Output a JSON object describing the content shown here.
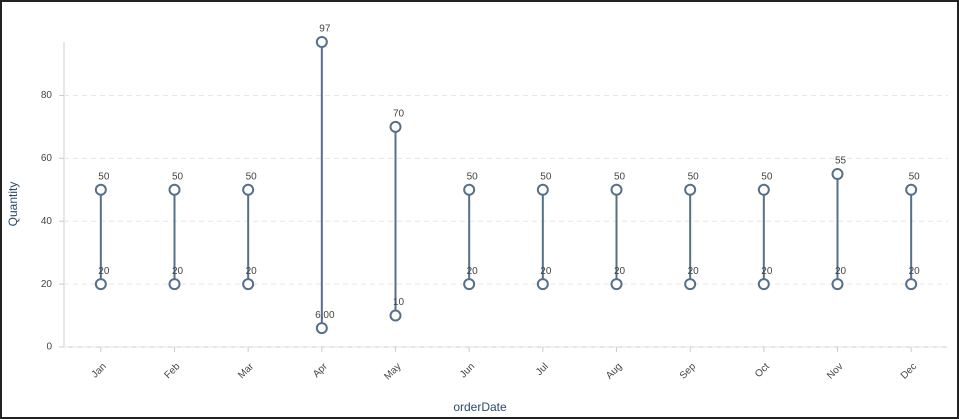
{
  "chart_data": {
    "type": "dumbbell",
    "x_label": "orderDate",
    "y_label": "Quantity",
    "categories": [
      "Jan",
      "Feb",
      "Mar",
      "Apr",
      "May",
      "Jun",
      "Jul",
      "Aug",
      "Sep",
      "Oct",
      "Nov",
      "Dec"
    ],
    "color": "#56708a",
    "series": [
      {
        "values": [
          20,
          20,
          20,
          6,
          10,
          20,
          20,
          20,
          20,
          20,
          20,
          20
        ],
        "value_labels": [
          "20",
          "20",
          "20",
          "6.00",
          "10",
          "20",
          "20",
          "20",
          "20",
          "20",
          "20",
          "20"
        ]
      },
      {
        "values": [
          50,
          50,
          50,
          97,
          70,
          50,
          50,
          50,
          50,
          50,
          55,
          50
        ]
      }
    ],
    "ylim": [
      0,
      97
    ],
    "yticks": [
      0,
      20,
      40,
      60,
      80
    ],
    "grid": true
  }
}
